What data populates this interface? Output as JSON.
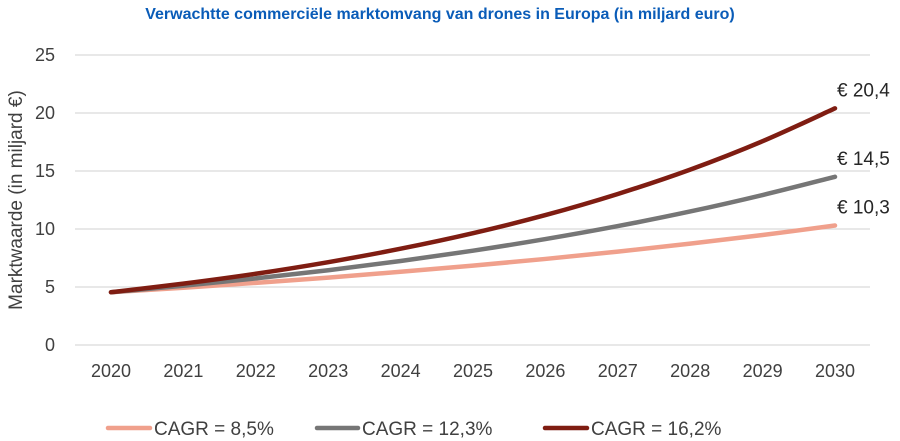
{
  "chart_data": {
    "type": "line",
    "title": "Verwachtte commerciële marktomvang van drones in Europa (in miljard euro)",
    "xlabel": "",
    "ylabel": "Marktwaarde (in miljard €)",
    "ylim": [
      0,
      25
    ],
    "yticks": [
      "0",
      "5",
      "10",
      "15",
      "20",
      "25"
    ],
    "x": [
      "2020",
      "2021",
      "2022",
      "2023",
      "2024",
      "2025",
      "2026",
      "2027",
      "2028",
      "2029",
      "2030"
    ],
    "grid": true,
    "legend_position": "bottom",
    "series": [
      {
        "name": "CAGR = 8,5%",
        "color": "#f0a08c",
        "end_label": "€ 10,3",
        "values": [
          4.55,
          4.94,
          5.36,
          5.81,
          6.31,
          6.84,
          7.42,
          8.05,
          8.74,
          9.48,
          10.3
        ]
      },
      {
        "name": "CAGR = 12,3%",
        "color": "#767676",
        "end_label": "€ 14,5",
        "values": [
          4.55,
          5.11,
          5.74,
          6.44,
          7.24,
          8.13,
          9.13,
          10.25,
          11.51,
          12.93,
          14.5
        ]
      },
      {
        "name": "CAGR = 16,2%",
        "color": "#7f1d12",
        "end_label": "€ 20,4",
        "values": [
          4.55,
          5.29,
          6.14,
          7.14,
          8.3,
          9.64,
          11.2,
          13.02,
          15.12,
          17.57,
          20.4
        ]
      }
    ]
  }
}
